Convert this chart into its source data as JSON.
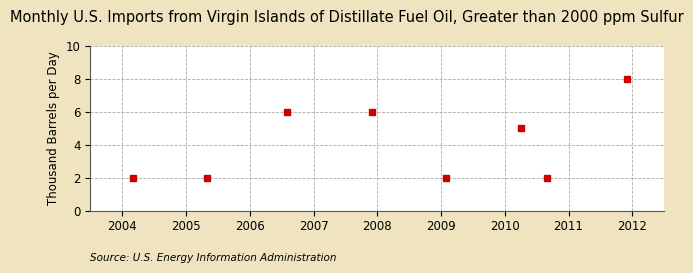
{
  "title": "Monthly U.S. Imports from Virgin Islands of Distillate Fuel Oil, Greater than 2000 ppm Sulfur",
  "ylabel": "Thousand Barrels per Day",
  "source": "Source: U.S. Energy Information Administration",
  "background_color": "#f0e4c0",
  "plot_background_color": "#ffffff",
  "point_color": "#cc0000",
  "data_x": [
    2004.17,
    2005.33,
    2006.58,
    2007.92,
    2009.08,
    2010.25,
    2010.67,
    2011.92
  ],
  "data_y": [
    2,
    2,
    6,
    6,
    2,
    5,
    2,
    8
  ],
  "xlim": [
    2003.5,
    2012.5
  ],
  "ylim": [
    0,
    10
  ],
  "xticks": [
    2004,
    2005,
    2006,
    2007,
    2008,
    2009,
    2010,
    2011,
    2012
  ],
  "yticks": [
    0,
    2,
    4,
    6,
    8,
    10
  ],
  "title_fontsize": 10.5,
  "label_fontsize": 8.5,
  "tick_fontsize": 8.5,
  "source_fontsize": 7.5,
  "marker_size": 4
}
